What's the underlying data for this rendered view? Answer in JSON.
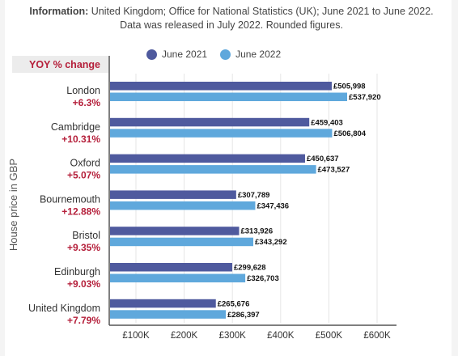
{
  "info": {
    "label": "Information:",
    "text": " United Kingdom; Office for National Statistics (UK); June 2021 to June 2022. Data was released in July 2022. Rounded figures."
  },
  "colors": {
    "june2021": "#4f5a9e",
    "june2022": "#5fa8dc"
  },
  "chart_data": {
    "type": "bar",
    "orientation": "horizontal",
    "ylabel": "House price in GBP",
    "yoy_header": "YOY % change",
    "legend_position": "top",
    "categories": [
      "London",
      "Cambridge",
      "Oxford",
      "Bournemouth",
      "Bristol",
      "Edinburgh",
      "United Kingdom"
    ],
    "yoy": [
      "+6.3%",
      "+10.31%",
      "+5.07%",
      "+12.88%",
      "+9.35%",
      "+9.03%",
      "+7.79%"
    ],
    "series": [
      {
        "name": "June 2021",
        "values": [
          505998,
          459403,
          450637,
          307789,
          313926,
          299628,
          265676
        ],
        "labels": [
          "£505,998",
          "£459,403",
          "£450,637",
          "£307,789",
          "£313,926",
          "£299,628",
          "£265,676"
        ]
      },
      {
        "name": "June 2022",
        "values": [
          537920,
          506804,
          473527,
          347436,
          343292,
          326703,
          286397
        ],
        "labels": [
          "£537,920",
          "£506,804",
          "£473,527",
          "£347,436",
          "£343,292",
          "£326,703",
          "£286,397"
        ]
      }
    ],
    "xticks": [
      100000,
      200000,
      300000,
      400000,
      500000,
      600000
    ],
    "xtick_labels": [
      "£100K",
      "£200K",
      "£300K",
      "£400K",
      "£500K",
      "£600K"
    ],
    "xlim": [
      0,
      650000
    ],
    "grid": true
  }
}
